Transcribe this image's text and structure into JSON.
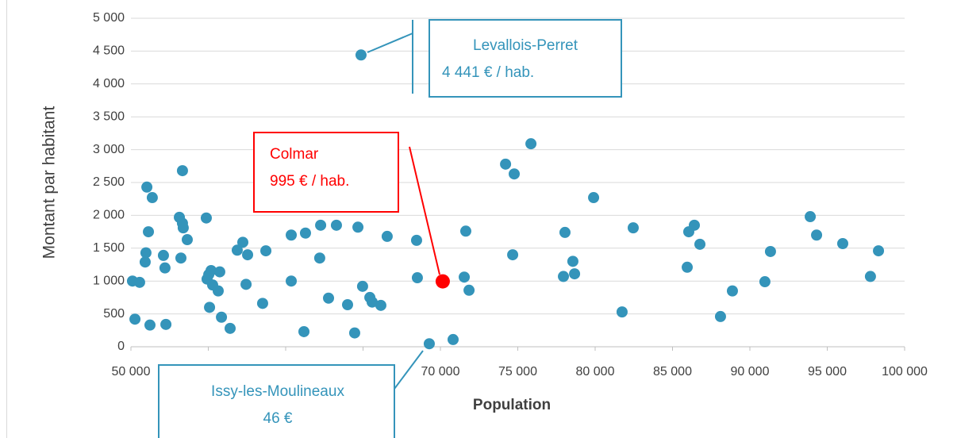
{
  "chart_data": {
    "type": "scatter",
    "xlabel": "Population",
    "ylabel": "Montant par habitant",
    "xlim": [
      50000,
      100000
    ],
    "ylim": [
      0,
      5000
    ],
    "xticks": [
      {
        "value": 50000,
        "label": "50 000"
      },
      {
        "value": 55000,
        "label": "55 000"
      },
      {
        "value": 60000,
        "label": "60 000"
      },
      {
        "value": 65000,
        "label": "65 000"
      },
      {
        "value": 70000,
        "label": "70 000"
      },
      {
        "value": 75000,
        "label": "75 000"
      },
      {
        "value": 80000,
        "label": "80 000"
      },
      {
        "value": 85000,
        "label": "85 000"
      },
      {
        "value": 90000,
        "label": "90 000"
      },
      {
        "value": 95000,
        "label": "95 000"
      },
      {
        "value": 100000,
        "label": "100 000"
      }
    ],
    "yticks": [
      0,
      500,
      {
        "value": 1000,
        "label": "1 000"
      },
      {
        "value": 1500,
        "label": "1 500"
      },
      {
        "value": 2000,
        "label": "2 000"
      },
      {
        "value": 2500,
        "label": "2 500"
      },
      {
        "value": 3000,
        "label": "3 000"
      },
      {
        "value": 3500,
        "label": "3 500"
      },
      {
        "value": 4000,
        "label": "4 000"
      },
      {
        "value": 4500,
        "label": "4 500"
      },
      {
        "value": 5000,
        "label": "5 000"
      }
    ],
    "grid": true,
    "series": [
      {
        "color": "#3494ba",
        "x": [
          50100,
          50560,
          50260,
          51030,
          51380,
          51130,
          50970,
          50920,
          51230,
          52100,
          52200,
          52260,
          53130,
          53330,
          53380,
          53330,
          53230,
          53640,
          54870,
          54920,
          55030,
          55180,
          55280,
          55640,
          55740,
          55080,
          55850,
          56410,
          56870,
          57230,
          57540,
          57440,
          58510,
          58720,
          60360,
          60360,
          61280,
          61180,
          62260,
          62200,
          62770,
          63280,
          64000,
          64460,
          64670,
          64870,
          64970,
          65440,
          65590,
          66150,
          66560,
          68460,
          68510,
          69280,
          70820,
          71540,
          71640,
          71850,
          74210,
          74770,
          74670,
          75850,
          78050,
          77950,
          78560,
          78670,
          79900,
          81740,
          82460,
          85950,
          86050,
          86410,
          86770,
          88100,
          88870,
          90970,
          91330,
          93900,
          94310,
          96000,
          97790,
          98310
        ],
        "values": [
          1000,
          980,
          420,
          2430,
          2270,
          1750,
          1430,
          1290,
          330,
          1390,
          1200,
          340,
          1970,
          1880,
          1810,
          2680,
          1350,
          1630,
          1960,
          1030,
          1100,
          1160,
          940,
          850,
          1140,
          600,
          450,
          280,
          1470,
          1590,
          1400,
          950,
          660,
          1460,
          1700,
          1000,
          1730,
          230,
          1850,
          1350,
          740,
          1850,
          640,
          210,
          1820,
          4441,
          920,
          750,
          680,
          630,
          1680,
          1620,
          1050,
          46,
          110,
          1060,
          1760,
          860,
          2780,
          2630,
          1400,
          3090,
          1740,
          1070,
          1300,
          1110,
          2270,
          530,
          1810,
          1210,
          1750,
          1850,
          1560,
          460,
          850,
          990,
          1450,
          1980,
          1700,
          1570,
          1070,
          1460
        ]
      },
      {
        "color": "#ff0000",
        "x": [
          70150
        ],
        "values": [
          995
        ]
      }
    ],
    "annotations": [
      {
        "title": "Levallois-Perret",
        "text": "4 441 € / hab.",
        "color": "#3494ba"
      },
      {
        "title": "Colmar",
        "text": "995 € / hab.",
        "color": "#ff0000"
      },
      {
        "title": "Issy-les-Moulineaux",
        "text": "46 €",
        "color": "#3494ba"
      }
    ]
  }
}
